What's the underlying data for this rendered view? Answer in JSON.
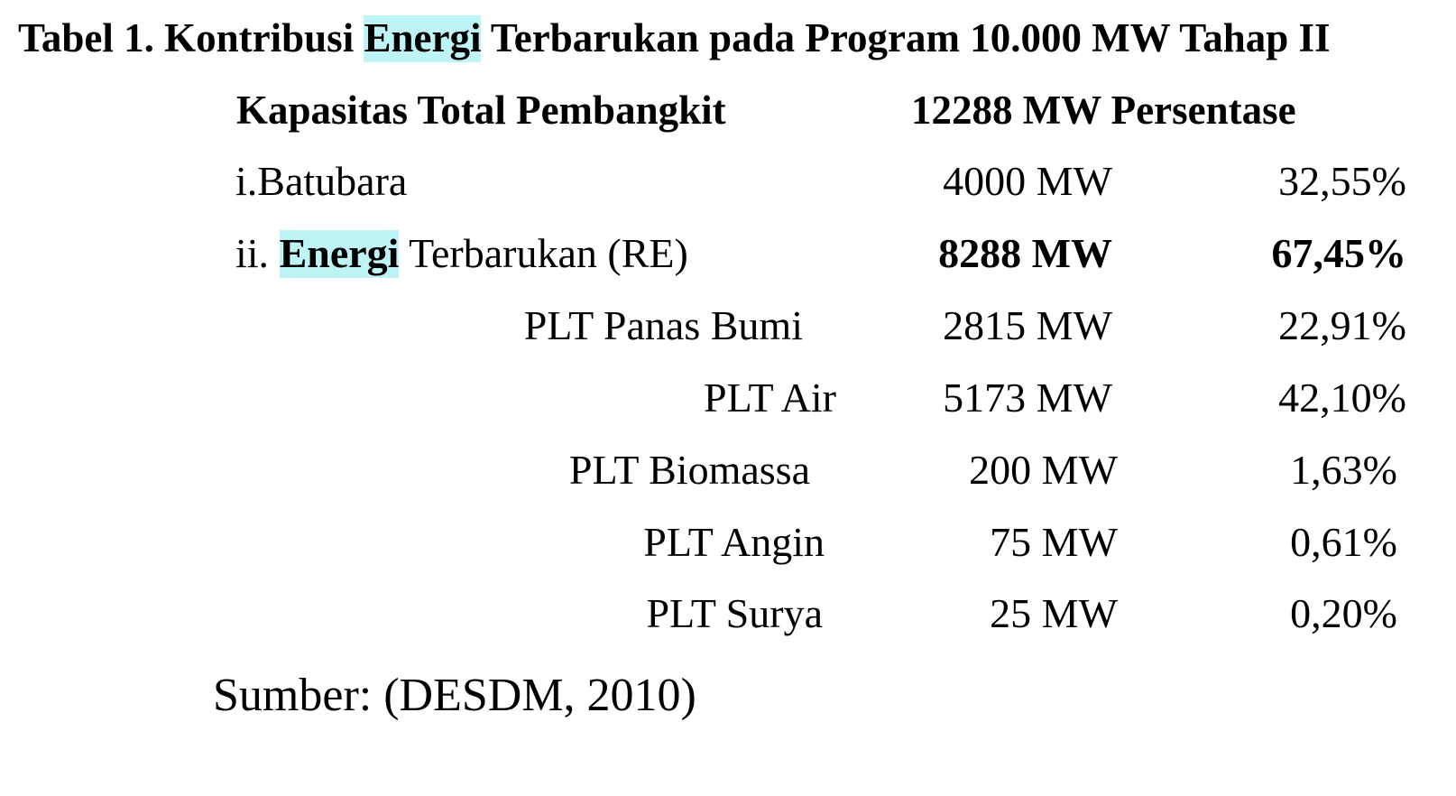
{
  "document": {
    "title": {
      "prefix": "Tabel 1. Kontribusi",
      "highlight": "Energi",
      "suffix": "Terbarukan pada Program 10.000 MW Tahap II"
    },
    "header": {
      "label": "Kapasitas Total Pembangkit",
      "total": "12288 MW",
      "percent_label": "Persentase"
    },
    "rows": [
      {
        "label": "i.Batubara",
        "capacity": "4000 MW",
        "percent": "32,55%"
      },
      {
        "label_prefix": "ii.",
        "label_highlight": "Energi",
        "label_suffix": "Terbarukan (RE)",
        "capacity": "8288 MW",
        "percent": "67,45%"
      },
      {
        "label": "PLT Panas Bumi",
        "capacity": "2815 MW",
        "percent": "22,91%"
      },
      {
        "label": "PLT Air",
        "capacity": "5173 MW",
        "percent": "42,10%"
      },
      {
        "label": "PLT Biomassa",
        "capacity": "200 MW",
        "percent": "1,63%"
      },
      {
        "label": "PLT Angin",
        "capacity": "75 MW",
        "percent": "0,61%"
      },
      {
        "label": "PLT Surya",
        "capacity": "25 MW",
        "percent": "0,20%"
      }
    ],
    "source": "Sumber: (DESDM, 2010)"
  },
  "colors": {
    "highlight": "#bff4f6",
    "text": "#000000",
    "background": "#ffffff"
  }
}
